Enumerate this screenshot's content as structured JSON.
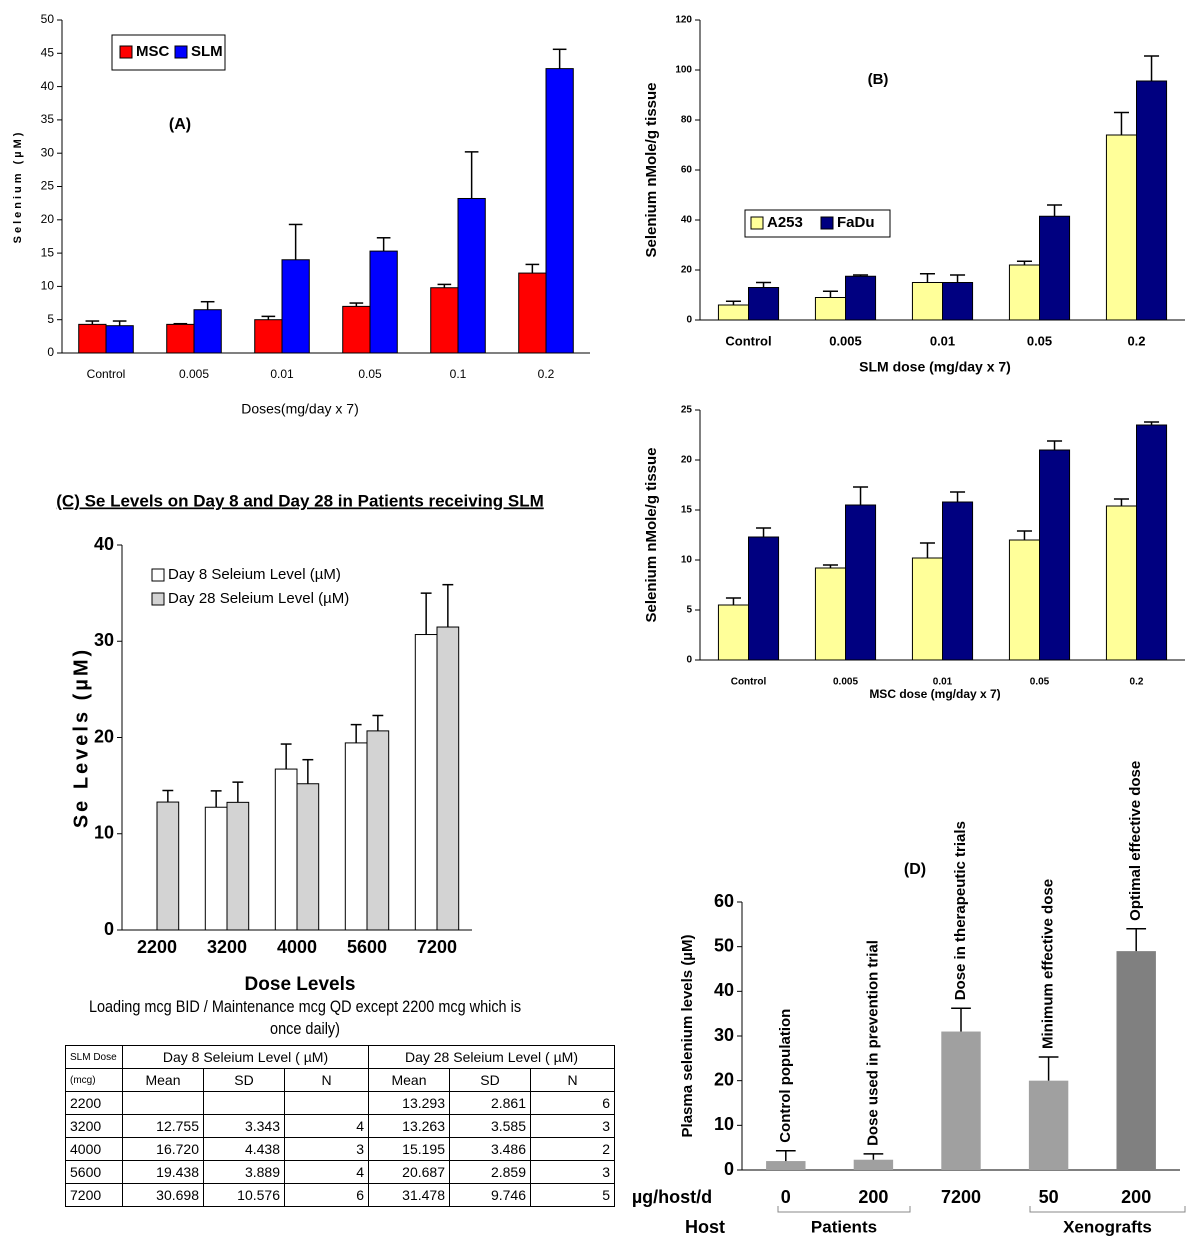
{
  "chart_data": [
    {
      "type": "bar",
      "title": "(A)",
      "ylabel": "Selenium (µM)",
      "xlabel": "Doses(mg/day x 7)",
      "categories": [
        "Control",
        "0.005",
        "0.01",
        "0.05",
        "0.1",
        "0.2"
      ],
      "series": [
        {
          "name": "MSC",
          "color": "#ff0000",
          "values": [
            4.3,
            4.3,
            5,
            7,
            9.8,
            12
          ],
          "errors": [
            0.5,
            0.1,
            0.5,
            0.5,
            0.5,
            1.3
          ]
        },
        {
          "name": "SLM",
          "color": "#0000ff",
          "values": [
            4.1,
            6.5,
            14,
            15.3,
            23.2,
            42.7
          ],
          "errors": [
            0.7,
            1.2,
            5.3,
            2,
            7,
            2.9
          ]
        }
      ],
      "ylim": [
        0,
        50
      ],
      "yticks": [
        0,
        5,
        10,
        15,
        20,
        25,
        30,
        35,
        40,
        45,
        50
      ]
    },
    {
      "type": "bar",
      "title": "(B)",
      "ylabel": "Selenium nMole/g tissue",
      "xlabel": "SLM dose (mg/day x 7)",
      "categories": [
        "Control",
        "0.005",
        "0.01",
        "0.05",
        "0.2"
      ],
      "series": [
        {
          "name": "A253",
          "color": "#ffff99",
          "values": [
            6,
            9,
            15,
            22,
            74
          ],
          "errors": [
            1.5,
            2.5,
            3.5,
            1.5,
            9
          ]
        },
        {
          "name": "FaDu",
          "color": "#000080",
          "values": [
            13,
            17.5,
            15,
            41.5,
            95.6
          ],
          "errors": [
            2,
            0.5,
            3,
            4.5,
            10
          ]
        }
      ],
      "ylim": [
        0,
        120
      ],
      "yticks": [
        0,
        20,
        40,
        60,
        80,
        100,
        120
      ]
    },
    {
      "type": "bar",
      "ylabel": "Selenium nMole/g tissue",
      "xlabel": "MSC dose (mg/day x 7)",
      "categories": [
        "Control",
        "0.005",
        "0.01",
        "0.05",
        "0.2"
      ],
      "series": [
        {
          "name": "A253",
          "color": "#ffff99",
          "values": [
            5.5,
            9.2,
            10.2,
            12,
            15.4
          ],
          "errors": [
            0.7,
            0.3,
            1.5,
            0.9,
            0.7
          ]
        },
        {
          "name": "FaDu",
          "color": "#000080",
          "values": [
            12.3,
            15.5,
            15.8,
            21,
            23.5
          ],
          "errors": [
            0.9,
            1.8,
            1,
            0.9,
            0.3
          ]
        }
      ],
      "ylim": [
        0,
        25
      ],
      "yticks": [
        0,
        5,
        10,
        15,
        20,
        25
      ]
    },
    {
      "type": "bar",
      "title": "(C) Se Levels on Day 8 and Day 28 in Patients receiving SLM",
      "ylabel": "Se Levels (µM)",
      "xlabel": "Dose Levels",
      "note": "Loading mcg BID / Maintenance mcg QD except 2200 mcg which is once daily)",
      "categories": [
        "2200",
        "3200",
        "4000",
        "5600",
        "7200"
      ],
      "series": [
        {
          "name": "Day 8 Seleium Level (µM)",
          "color": "#ffffff",
          "values": [
            null,
            12.755,
            16.72,
            19.438,
            30.698
          ],
          "errors": [
            null,
            1.7,
            2.6,
            1.9,
            4.3
          ]
        },
        {
          "name": "Day 28 Seleium Level (µM)",
          "color": "#d3d3d3",
          "values": [
            13.293,
            13.263,
            15.195,
            20.687,
            31.478
          ],
          "errors": [
            1.2,
            2.1,
            2.5,
            1.6,
            4.4
          ]
        }
      ],
      "ylim": [
        0,
        40
      ],
      "yticks": [
        0,
        10,
        20,
        30,
        40
      ]
    },
    {
      "type": "bar",
      "title": "(D)",
      "ylabel": "Plasma selenium levels (µM)",
      "categories": [
        "0",
        "200",
        "7200",
        "50",
        "200"
      ],
      "annotations": [
        "Control population",
        "Dose used in prevention trial",
        "Dose in therapeutic trials",
        "Minimum effective dose",
        "Optimal effective dose"
      ],
      "series": [
        {
          "colors": [
            "#a0a0a0",
            "#a0a0a0",
            "#a0a0a0",
            "#a0a0a0",
            "#808080"
          ],
          "values": [
            2,
            2.3,
            31,
            20,
            49
          ],
          "errors": [
            2.3,
            1.3,
            5.2,
            5.3,
            5
          ]
        }
      ],
      "dose_label": "µg/host/d",
      "host_label": "Host",
      "groups": [
        "Patients",
        "Xenografts"
      ],
      "ylim": [
        0,
        60
      ],
      "yticks": [
        0,
        10,
        20,
        30,
        40,
        50,
        60
      ]
    }
  ],
  "table": {
    "header": [
      "SLM Dose",
      "Day 8 Seleium Level ( µM)",
      "Day 28 Seleium Level ( µM)"
    ],
    "subheader": [
      "(mcg)",
      "Mean",
      "SD",
      "N",
      "Mean",
      "SD",
      "N"
    ],
    "rows": [
      [
        "2200",
        null,
        null,
        null,
        "13.293",
        "2.861",
        "6"
      ],
      [
        "3200",
        "12.755",
        "3.343",
        "4",
        "13.263",
        "3.585",
        "3"
      ],
      [
        "4000",
        "16.720",
        "4.438",
        "3",
        "15.195",
        "3.486",
        "2"
      ],
      [
        "5600",
        "19.438",
        "3.889",
        "4",
        "20.687",
        "2.859",
        "3"
      ],
      [
        "7200",
        "30.698",
        "10.576",
        "6",
        "31.478",
        "9.746",
        "5"
      ]
    ]
  }
}
